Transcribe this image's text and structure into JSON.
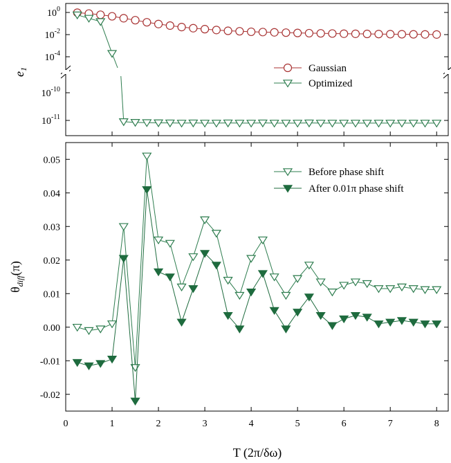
{
  "chart_data": [
    {
      "type": "line",
      "panel": "top",
      "ylabel_main": "e",
      "ylabel_sub": "1",
      "yscale": "log",
      "broken_axis": true,
      "xlim": [
        0,
        8.25
      ],
      "upper_ytick_labels": [
        {
          "base": "10",
          "exp": "0",
          "value": 1
        },
        {
          "base": "10",
          "exp": "-2",
          "value": 0.01
        },
        {
          "base": "10",
          "exp": "-4",
          "value": 0.0001
        }
      ],
      "lower_ytick_labels": [
        {
          "base": "10",
          "exp": "-10",
          "value": 1e-10
        },
        {
          "base": "10",
          "exp": "-11",
          "value": 1e-11
        }
      ],
      "legend_position": "right",
      "series": [
        {
          "name": "Gaussian",
          "color": "#a83232",
          "marker": "circle-open",
          "x": [
            0.25,
            0.5,
            0.75,
            1.0,
            1.25,
            1.5,
            1.75,
            2.0,
            2.25,
            2.5,
            2.75,
            3.0,
            3.25,
            3.5,
            3.75,
            4.0,
            4.25,
            4.5,
            4.75,
            5.0,
            5.25,
            5.5,
            5.75,
            6.0,
            6.25,
            6.5,
            6.75,
            7.0,
            7.25,
            7.5,
            7.75,
            8.0
          ],
          "y": [
            0.95,
            0.8,
            0.62,
            0.45,
            0.3,
            0.2,
            0.13,
            0.09,
            0.065,
            0.048,
            0.038,
            0.031,
            0.026,
            0.022,
            0.02,
            0.018,
            0.017,
            0.016,
            0.015,
            0.014,
            0.0135,
            0.013,
            0.0125,
            0.012,
            0.0118,
            0.0115,
            0.0112,
            0.011,
            0.0108,
            0.0106,
            0.0104,
            0.0102
          ]
        },
        {
          "name": "Optimized",
          "color": "#2e7d4f",
          "marker": "triangle-down-open",
          "x": [
            0.25,
            0.5,
            0.75,
            1.0,
            1.25,
            1.5,
            1.75,
            2.0,
            2.25,
            2.5,
            2.75,
            3.0,
            3.25,
            3.5,
            3.75,
            4.0,
            4.25,
            4.5,
            4.75,
            5.0,
            5.25,
            5.5,
            5.75,
            6.0,
            6.25,
            6.5,
            6.75,
            7.0,
            7.25,
            7.5,
            7.75,
            8.0
          ],
          "y": [
            0.6,
            0.3,
            0.15,
            0.0002,
            9e-12,
            8.5e-12,
            8.3e-12,
            8.2e-12,
            8.1e-12,
            8e-12,
            8.1e-12,
            8e-12,
            8e-12,
            8.1e-12,
            8e-12,
            8e-12,
            8.1e-12,
            8e-12,
            8e-12,
            8e-12,
            8.1e-12,
            8e-12,
            8e-12,
            8e-12,
            8e-12,
            8e-12,
            8e-12,
            8e-12,
            8e-12,
            8e-12,
            8e-12,
            8e-12
          ]
        }
      ]
    },
    {
      "type": "line",
      "panel": "bottom",
      "ylabel_main": "θ",
      "ylabel_sub": "diff",
      "ylabel_unit": "(π)",
      "xlabel": "T  (2π/δω)",
      "xlim": [
        0,
        8.25
      ],
      "ylim": [
        -0.025,
        0.055
      ],
      "xticks": [
        "0",
        "1",
        "2",
        "3",
        "4",
        "5",
        "6",
        "7",
        "8"
      ],
      "yticks": [
        "0.05",
        "0.04",
        "0.03",
        "0.02",
        "0.01",
        "0.00",
        "-0.01",
        "-0.02"
      ],
      "legend_position": "top-right",
      "series": [
        {
          "name": "Before phase shift",
          "color": "#2e7d4f",
          "marker": "triangle-down-open",
          "x": [
            0.25,
            0.5,
            0.75,
            1.0,
            1.25,
            1.5,
            1.75,
            2.0,
            2.25,
            2.5,
            2.75,
            3.0,
            3.25,
            3.5,
            3.75,
            4.0,
            4.25,
            4.5,
            4.75,
            5.0,
            5.25,
            5.5,
            5.75,
            6.0,
            6.25,
            6.5,
            6.75,
            7.0,
            7.25,
            7.5,
            7.75,
            8.0
          ],
          "y": [
            0.0,
            -0.001,
            -0.0005,
            0.001,
            0.03,
            -0.012,
            0.051,
            0.026,
            0.025,
            0.012,
            0.021,
            0.032,
            0.028,
            0.014,
            0.0095,
            0.0205,
            0.026,
            0.015,
            0.0095,
            0.0145,
            0.0185,
            0.0135,
            0.0105,
            0.0125,
            0.0135,
            0.013,
            0.0115,
            0.0115,
            0.012,
            0.0115,
            0.0112,
            0.0112
          ]
        },
        {
          "name": "After 0.01π phase shift",
          "color": "#1e6b3e",
          "marker": "triangle-down-filled",
          "x": [
            0.25,
            0.5,
            0.75,
            1.0,
            1.25,
            1.5,
            1.75,
            2.0,
            2.25,
            2.5,
            2.75,
            3.0,
            3.25,
            3.5,
            3.75,
            4.0,
            4.25,
            4.5,
            4.75,
            5.0,
            5.25,
            5.5,
            5.75,
            6.0,
            6.25,
            6.5,
            6.75,
            7.0,
            7.25,
            7.5,
            7.75,
            8.0
          ],
          "y": [
            -0.0105,
            -0.0115,
            -0.0108,
            -0.0095,
            0.0205,
            -0.022,
            0.041,
            0.0165,
            0.015,
            0.0015,
            0.0115,
            0.022,
            0.0185,
            0.0035,
            -0.0005,
            0.0105,
            0.016,
            0.005,
            -0.0005,
            0.0045,
            0.009,
            0.0035,
            0.0005,
            0.0025,
            0.0035,
            0.003,
            0.001,
            0.0015,
            0.002,
            0.0015,
            0.001,
            0.001
          ]
        }
      ]
    }
  ]
}
